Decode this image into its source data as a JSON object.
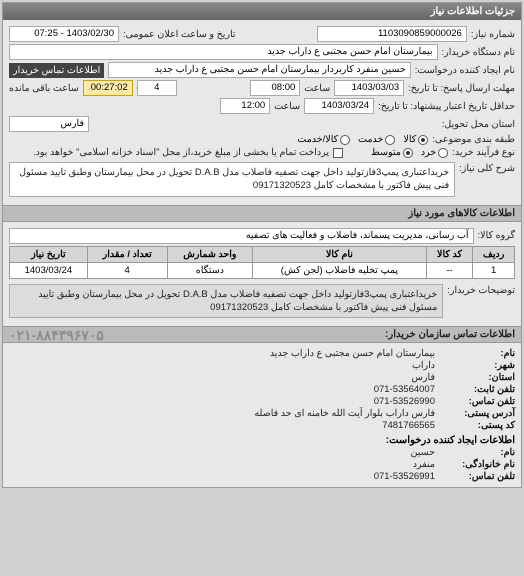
{
  "panel": {
    "title": "جزئیات اطلاعات نیاز"
  },
  "header": {
    "request_no_label": "شماره نیاز:",
    "request_no": "1103090859000026",
    "announce_label": "تاریخ و ساعت اعلان عمومی:",
    "announce": "1403/02/30 - 07:25",
    "buyer_org_label": "نام دستگاه خریدار:",
    "buyer_org": "بیمارستان امام حسن مجتبی ع داراب جدید",
    "requester_label": "نام ایجاد کننده درخواست:",
    "requester": "حسین منفرد کاربردار بیمارستان امام حسن مجتبی ع داراب جدید",
    "contact_label": "اطلاعات تماس خریدار",
    "deadline_send_label": "مهلت ارسال پاسخ: تا تاریخ:",
    "deadline_send_date": "1403/03/03",
    "deadline_send_time_label": "ساعت",
    "deadline_send_time": "08:00",
    "days_label": "",
    "days": "4",
    "remain_label": "ساعت باقی مانده",
    "remain": "00:27:02",
    "valid_label": "حداقل تاریخ اعتبار پیشنهاد: تا تاریخ:",
    "valid_date": "1403/03/24",
    "valid_time_label": "ساعت",
    "valid_time": "12:00",
    "delivery_prov_label": "استان محل تحویل:",
    "delivery_prov": "فارس",
    "priority_label": "طبقه بندی موضوعی:",
    "priority_opts": {
      "a": "کالا",
      "b": "خدمت",
      "c": "کالا/خدمت"
    },
    "process_label": "نوع فرآیند خرید:",
    "process_opts": {
      "a": "خرد",
      "b": "متوسط"
    },
    "payment_note": "پرداخت تمام یا بخشی از مبلغ خرید،از محل \"اسناد خزانه اسلامی\" خواهد بود.",
    "desc_label": "شرح کلی نیاز:",
    "desc": "خریداعتباری پمپ3فازتولید داخل جهت تصفیه فاضلاب مدل D.A.B تحویل در محل بیمارستان وطبق تایید مسئول فنی پیش فاکتور با مشخصات کامل 09171320523"
  },
  "goods_section": {
    "title": "اطلاعات کالاهای مورد نیاز",
    "group_label": "گروه کالا:",
    "group": "آب رسانی، مدیریت پسماند، فاضلاب و فعالیت های تصفیه",
    "columns": [
      "ردیف",
      "کد کالا",
      "نام کالا",
      "واحد شمارش",
      "تعداد / مقدار",
      "تاریخ نیاز"
    ],
    "rows": [
      [
        "1",
        "--",
        "پمپ تخلیه فاضلاب (لجن کش)",
        "دستگاه",
        "4",
        "1403/03/24"
      ]
    ],
    "buyer_note_label": "توضیحات خریدار:",
    "buyer_note": "خریداعتباری پمپ3فازتولید داخل جهت تصفیه فاضلاب مدل D.A.B تحویل در محل بیمارستان وطبق تایید مسئول فنی پیش فاکتور با مشخصات کامل 09171320523"
  },
  "contact_section": {
    "title": "اطلاعات تماس سازمان خریدار:",
    "rows": [
      {
        "label": "نام:",
        "val": "بیمارستان امام حسن مجتبی ع داراب جدید"
      },
      {
        "label": "شهر:",
        "val": "داراب"
      },
      {
        "label": "استان:",
        "val": "فارس"
      },
      {
        "label": "تلفن ثابت:",
        "val": "071-53564007"
      },
      {
        "label": "تلفن تماس:",
        "val": "071-53526990"
      },
      {
        "label": "آدرس پستی:",
        "val": "فارس داراب بلوار آیت الله خامنه ای حد فاصله"
      },
      {
        "label": "کد پستی:",
        "val": "7481766565"
      }
    ],
    "requester_title": "اطلاعات ایجاد کننده درخواست:",
    "req_rows": [
      {
        "label": "نام:",
        "val": "حسین"
      },
      {
        "label": "نام خانوادگی:",
        "val": "منفرد"
      },
      {
        "label": "تلفن تماس:",
        "val": "071-53526991"
      }
    ],
    "watermark": "۰۲۱-۸۸۴۳۹۶۷۰۵"
  }
}
